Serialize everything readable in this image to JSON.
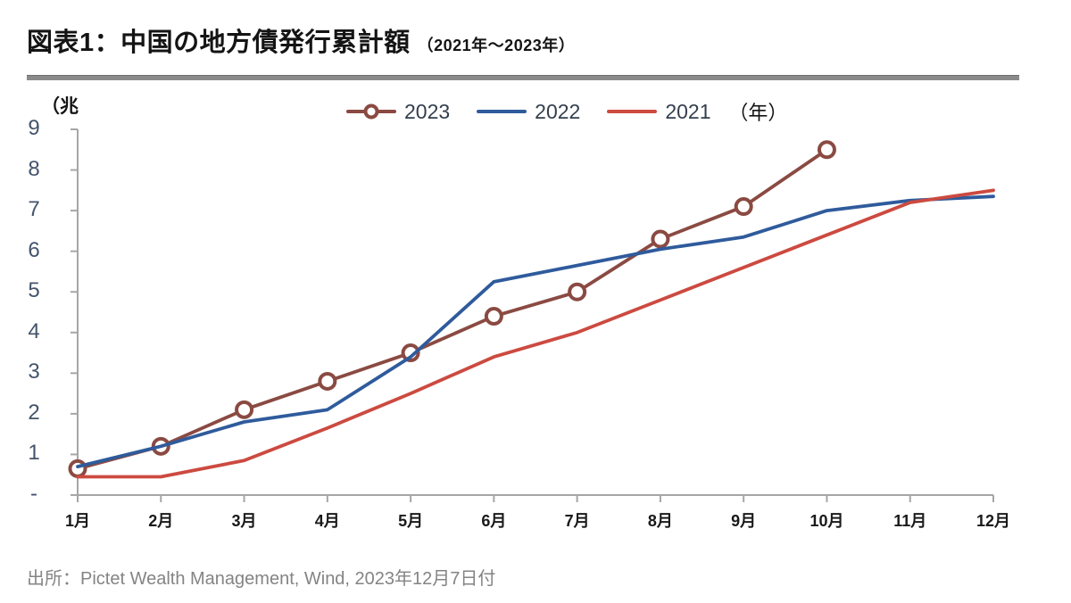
{
  "header": {
    "title": "図表1：中国の地方債発行累計額",
    "title_suffix": "（2021年～2023年）"
  },
  "legend": {
    "items": [
      {
        "label": "2023"
      },
      {
        "label": "2022"
      },
      {
        "label": "2021"
      }
    ],
    "unit_label": "（年）"
  },
  "chart_data": {
    "type": "line",
    "title": "図表1：中国の地方債発行累計額（2021年～2023年）",
    "unit_left": "（兆",
    "unit_right": "（年）",
    "x_categories": [
      "1月",
      "2月",
      "3月",
      "4月",
      "5月",
      "6月",
      "7月",
      "8月",
      "9月",
      "10月",
      "11月",
      "12月"
    ],
    "ylim": [
      0,
      9
    ],
    "ytick_labels": [
      "-",
      "1",
      "2",
      "3",
      "4",
      "5",
      "6",
      "7",
      "8",
      "9"
    ],
    "grid": false,
    "legend_position": "top",
    "axis_color": "#a6a6a6",
    "series": [
      {
        "name": "2023",
        "color": "#8a4a42",
        "marker": "open-circle",
        "values": [
          0.65,
          1.2,
          2.1,
          2.8,
          3.5,
          4.4,
          5.0,
          6.3,
          7.1,
          8.5,
          null,
          null
        ]
      },
      {
        "name": "2022",
        "color": "#2f5b9c",
        "marker": "none",
        "values": [
          0.7,
          1.2,
          1.8,
          2.1,
          3.4,
          5.25,
          5.65,
          6.05,
          6.35,
          7.0,
          7.25,
          7.35
        ]
      },
      {
        "name": "2021",
        "color": "#cc4a40",
        "marker": "none",
        "values": [
          0.45,
          0.45,
          0.85,
          1.65,
          2.5,
          3.4,
          4.0,
          4.8,
          5.6,
          6.4,
          7.2,
          7.5
        ]
      }
    ]
  },
  "footer": {
    "source": "出所：Pictet Wealth Management, Wind, 2023年12月7日付"
  }
}
